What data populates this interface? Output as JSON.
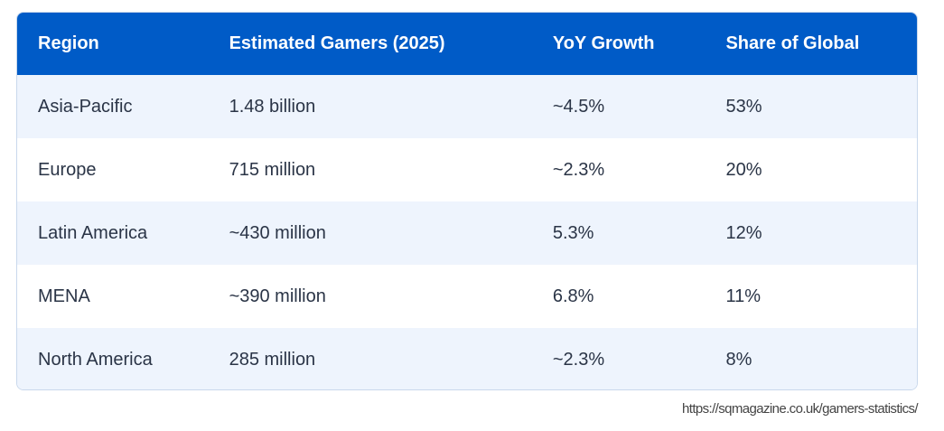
{
  "table": {
    "headers": [
      "Region",
      "Estimated Gamers (2025)",
      "YoY Growth",
      "Share of Global"
    ],
    "rows": [
      [
        "Asia-Pacific",
        "1.48 billion",
        "~4.5%",
        "53%"
      ],
      [
        "Europe",
        "715 million",
        "~2.3%",
        "20%"
      ],
      [
        "Latin America",
        "~430 million",
        "5.3%",
        "12%"
      ],
      [
        "MENA",
        "~390 million",
        "6.8%",
        "11%"
      ],
      [
        "North America",
        "285 million",
        "~2.3%",
        "8%"
      ]
    ]
  },
  "source": "https://sqmagazine.co.uk/gamers-statistics/",
  "colors": {
    "header_bg": "#005bc7",
    "alt_row_bg": "#eef4fd",
    "text": "#2a3446"
  }
}
